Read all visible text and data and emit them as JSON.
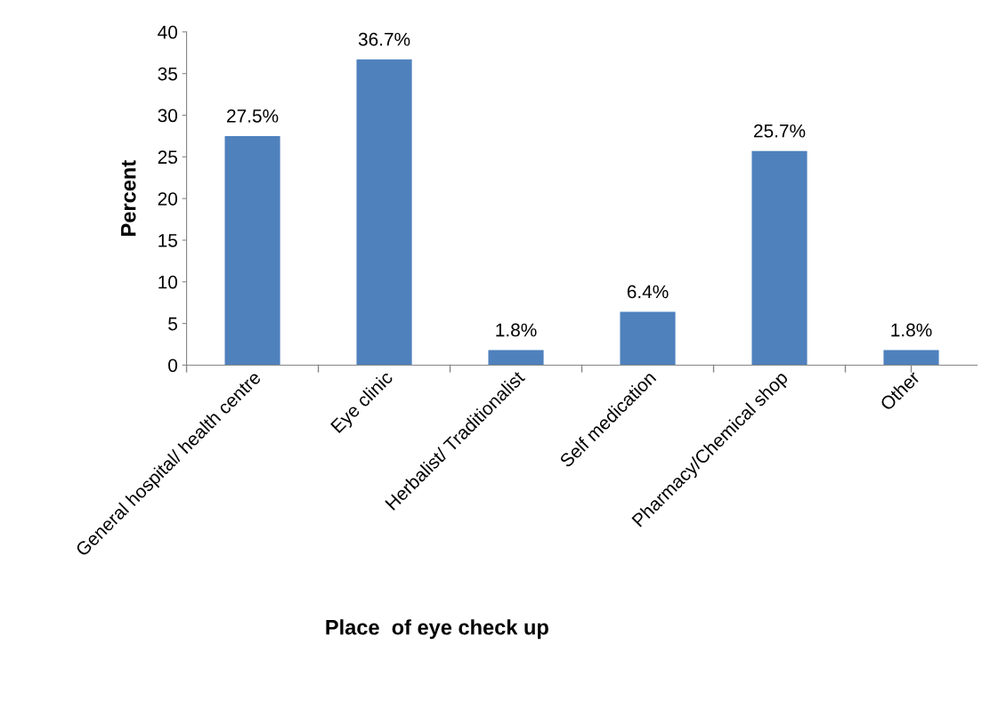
{
  "chart_data": {
    "type": "bar",
    "categories": [
      "General hospital/ health centre",
      "Eye clinic",
      "Herbalist/ Traditionalist",
      "Self medication",
      "Pharmacy/Chemical shop",
      "Other"
    ],
    "values": [
      27.5,
      36.7,
      1.8,
      6.4,
      25.7,
      1.8
    ],
    "value_labels": [
      "27.5%",
      "36.7%",
      "1.8%",
      "6.4%",
      "25.7%",
      "1.8%"
    ],
    "color": "#4f81bd",
    "xlabel": "Place  of eye check up",
    "ylabel": "Percent",
    "ylim": [
      0,
      40
    ],
    "yticks": [
      0,
      5,
      10,
      15,
      20,
      25,
      30,
      35,
      40
    ],
    "grid": false,
    "legend": false
  }
}
